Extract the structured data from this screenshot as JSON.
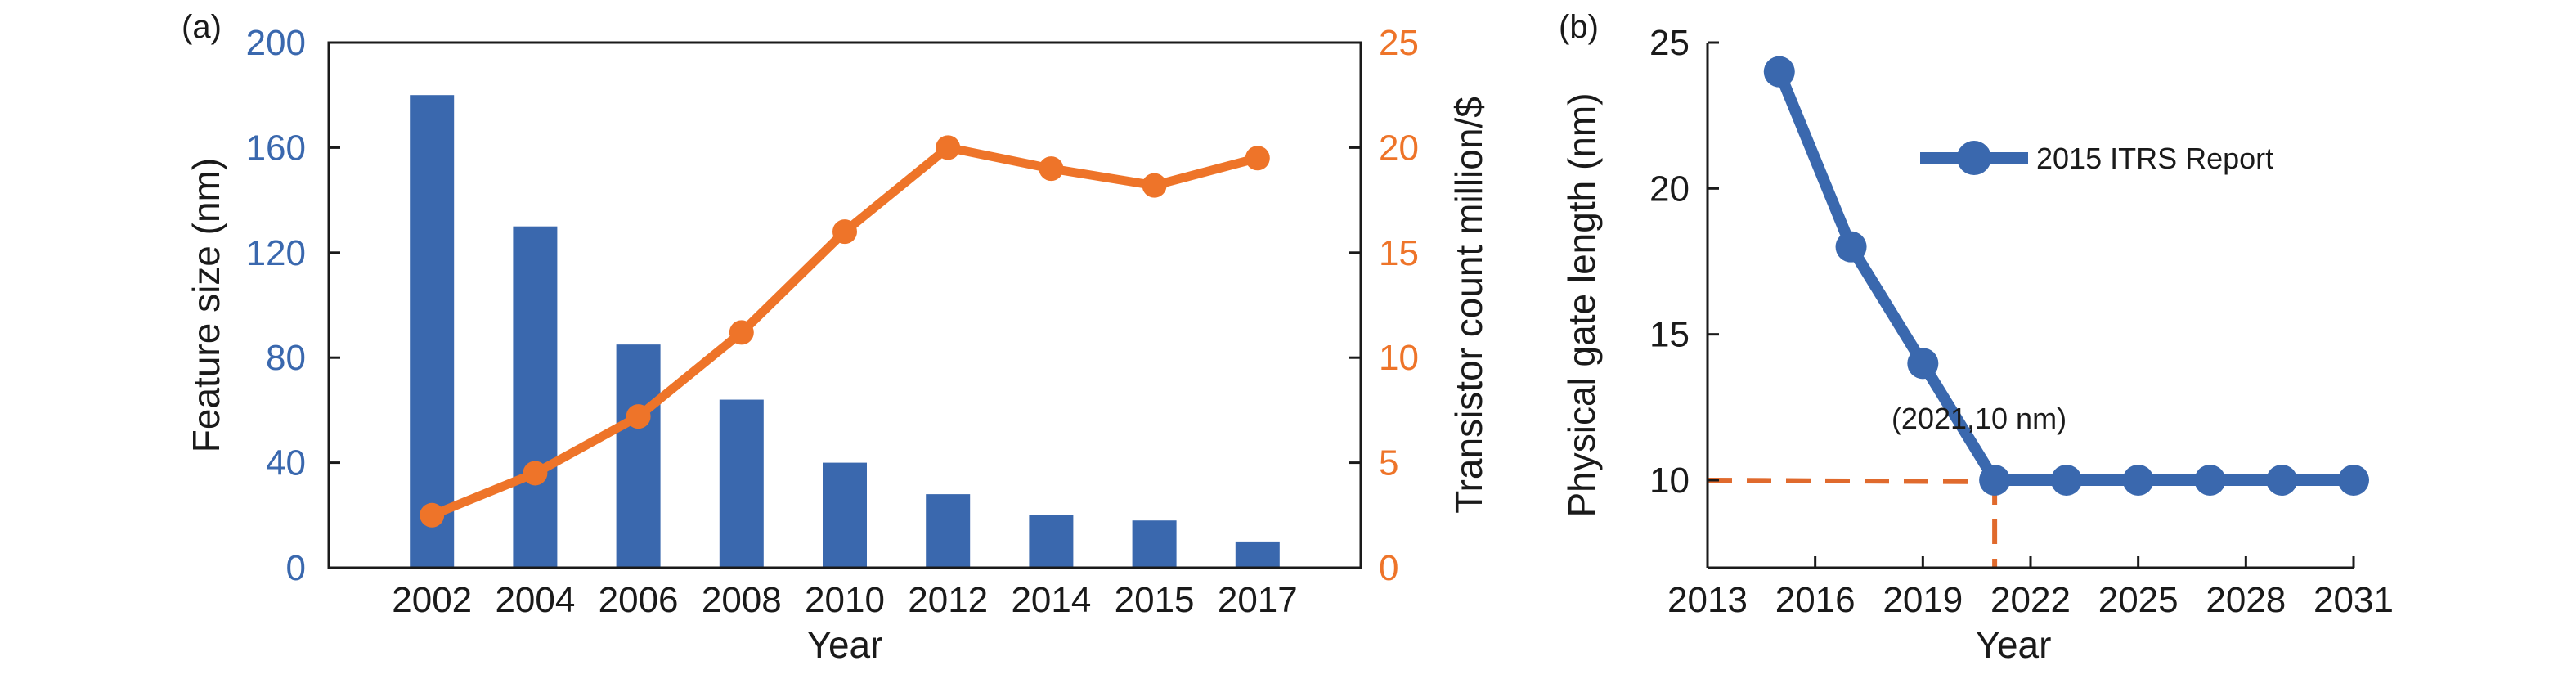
{
  "colors": {
    "bar": "#3a68ae",
    "line_a": "#ee7429",
    "line_b": "#3a68ae",
    "dashed": "#e06a2d",
    "axis": "#1a1a1a",
    "left_axis_text": "#3a68ae",
    "right_axis_text": "#ee7429"
  },
  "chart_data": [
    {
      "panel_label": "(a)",
      "type": "bar+line",
      "categories": [
        "2002",
        "2004",
        "2006",
        "2008",
        "2010",
        "2012",
        "2014",
        "2015",
        "2017"
      ],
      "xlabel": "Year",
      "ylabel": "Feature size (nm)",
      "y2label": "Transistor count million/$",
      "ylim": [
        0,
        200
      ],
      "y2lim": [
        0,
        25
      ],
      "yticks": [
        0,
        40,
        80,
        120,
        160,
        200
      ],
      "y2ticks": [
        0,
        5,
        10,
        15,
        20,
        25
      ],
      "bars": [
        180,
        130,
        85,
        64,
        40,
        28,
        20,
        18,
        10
      ],
      "line": [
        2.5,
        4.5,
        7.2,
        11.2,
        16,
        20,
        19,
        18.2,
        19.5
      ]
    },
    {
      "panel_label": "(b)",
      "type": "line",
      "xlabel": "Year",
      "ylabel": "Physical gate length (nm)",
      "xlim": [
        2013,
        2031
      ],
      "ylim": [
        7,
        25
      ],
      "xticks": [
        2013,
        2016,
        2019,
        2022,
        2025,
        2028,
        2031
      ],
      "yticks": [
        10,
        15,
        20,
        25
      ],
      "series": [
        {
          "name": "2015 ITRS Report",
          "x": [
            2015,
            2017,
            2019,
            2021,
            2023,
            2025,
            2027,
            2029,
            2031
          ],
          "y": [
            24,
            18,
            14,
            10,
            10,
            10,
            10,
            10,
            10
          ]
        }
      ],
      "annotation": {
        "text": "(2021,10 nm)",
        "x": 2021,
        "y": 10
      },
      "legend_position": "top-right"
    }
  ]
}
